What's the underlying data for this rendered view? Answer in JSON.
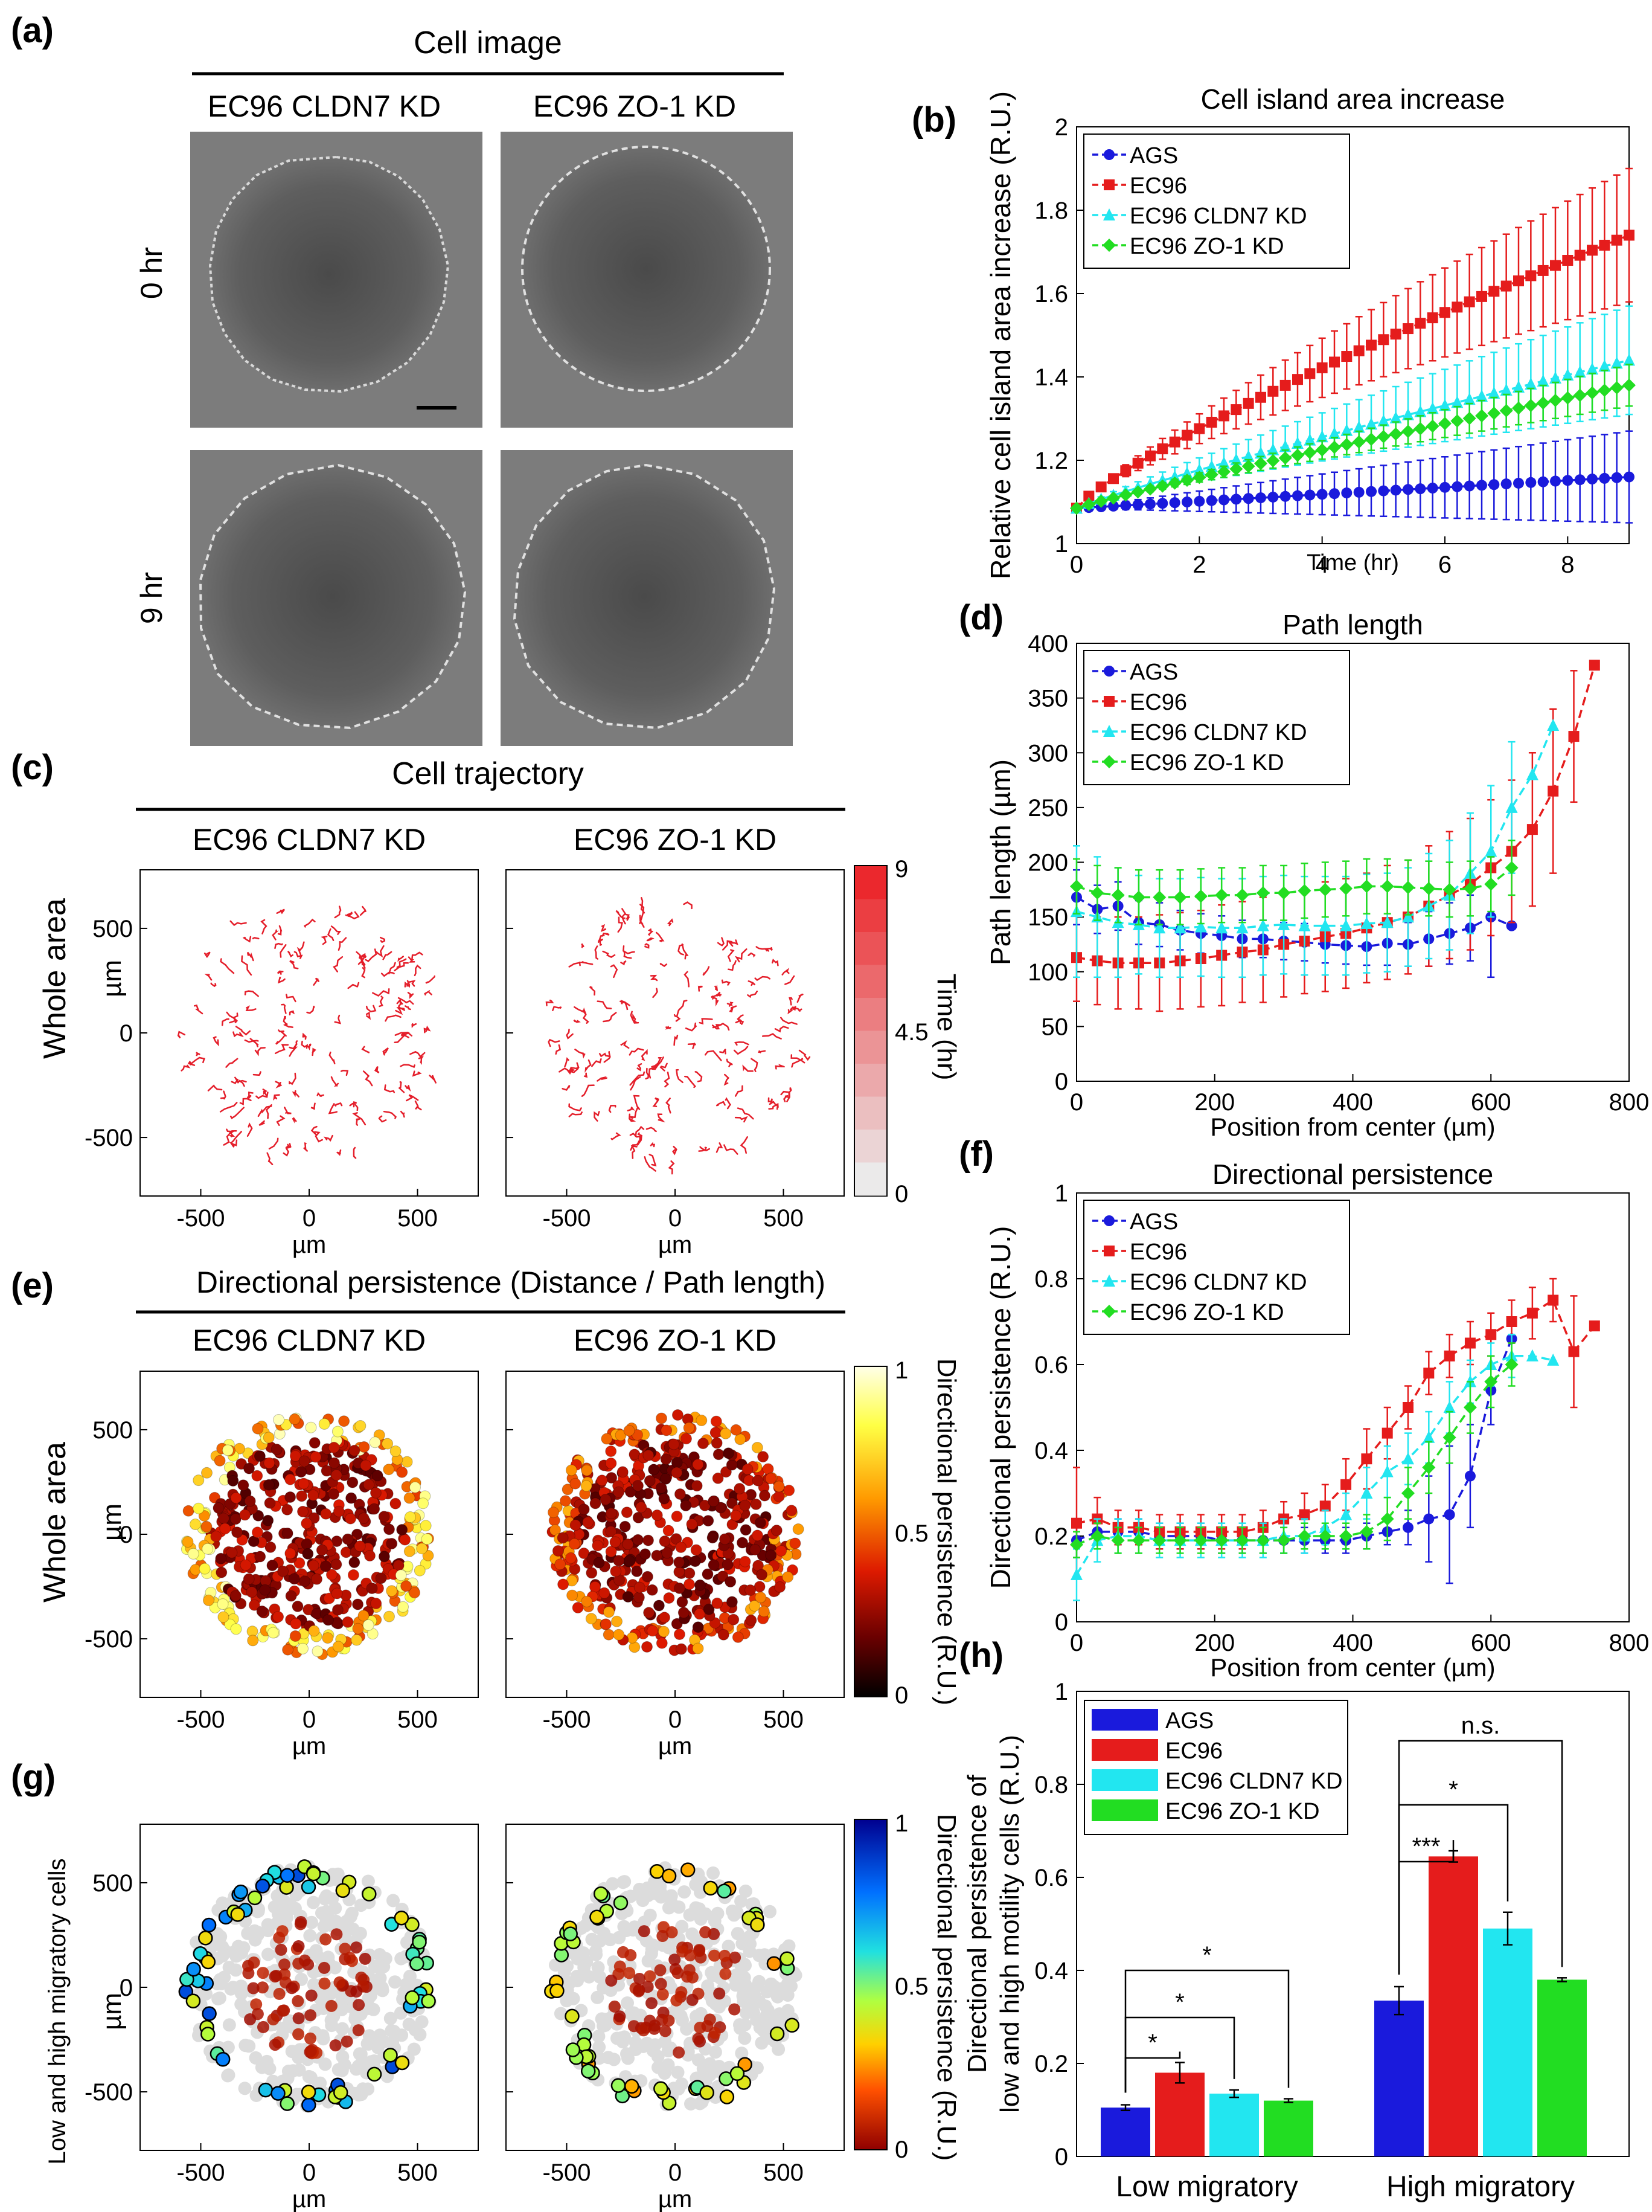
{
  "figure": {
    "panel_labels": [
      "(a)",
      "(b)",
      "(c)",
      "(d)",
      "(e)",
      "(f)",
      "(g)",
      "(h)"
    ],
    "panel_a": {
      "title": "Cell image",
      "col_labels": [
        "EC96 CLDN7 KD",
        "EC96 ZO-1 KD"
      ],
      "row_labels": [
        "0 hr",
        "9 hr"
      ]
    },
    "panel_c": {
      "title": "Cell trajectory",
      "col_labels": [
        "EC96 CLDN7 KD",
        "EC96 ZO-1 KD"
      ],
      "row_label": "Whole area",
      "axis_unit": "µm",
      "ticks": [
        "-500",
        "0",
        "500"
      ],
      "colorbar_label": "Time (hr)",
      "colorbar_ticks": [
        "9",
        "4.5",
        "0"
      ],
      "track_color": "#e41e2a"
    },
    "panel_e": {
      "title": "Directional persistence (Distance / Path length)",
      "col_labels": [
        "EC96 CLDN7 KD",
        "EC96 ZO-1 KD"
      ],
      "row_label": "Whole area",
      "axis_unit": "µm",
      "ticks": [
        "-500",
        "0",
        "500"
      ],
      "colorbar_label": "Directional persistence (R.U.)",
      "colorbar_ticks": [
        "1",
        "0.5",
        "0"
      ]
    },
    "panel_g": {
      "row_label": "Low and high migratory cells",
      "axis_unit": "µm",
      "ticks": [
        "-500",
        "0",
        "500"
      ],
      "colorbar_label": "Directional persistence (R.U.)",
      "colorbar_ticks": [
        "1",
        "0.5",
        "0"
      ]
    }
  },
  "colors": {
    "AGS": "#1a1adc",
    "EC96": "#e51c1c",
    "EC96 CLDN7 KD": "#22e6f0",
    "EC96 ZO-1 KD": "#22dd22"
  },
  "chart_data": [
    {
      "id": "b",
      "type": "line",
      "title": "Cell island area increase",
      "xlabel": "Time (hr)",
      "ylabel": "Relative cell island area increase (R.U.)",
      "xlim": [
        0,
        9
      ],
      "ylim": [
        1,
        2
      ],
      "xticks": [
        0,
        2,
        4,
        6,
        8
      ],
      "yticks": [
        1,
        1.2,
        1.4,
        1.6,
        1.8,
        2
      ],
      "ytick_labels": [
        "1",
        "1.2",
        "1.4",
        "1.6",
        "1.8",
        "2"
      ],
      "legend": [
        "AGS",
        "EC96",
        "EC96 CLDN7 KD",
        "EC96 ZO-1 KD"
      ],
      "series": [
        {
          "name": "AGS",
          "start": 1.085,
          "end": 1.16,
          "curve": 1.0,
          "err": 0.11
        },
        {
          "name": "EC96",
          "start": 1.085,
          "end": 1.74,
          "curve": 0.82,
          "err": 0.16
        },
        {
          "name": "EC96 CLDN7 KD",
          "start": 1.085,
          "end": 1.44,
          "curve": 0.9,
          "err": 0.13
        },
        {
          "name": "EC96 ZO-1 KD",
          "start": 1.085,
          "end": 1.38,
          "curve": 0.92,
          "err": 0.05
        }
      ]
    },
    {
      "id": "d",
      "type": "line",
      "title": "Path length",
      "xlabel": "Position from center (µm)",
      "ylabel": "Path length (µm)",
      "xlim": [
        0,
        800
      ],
      "ylim": [
        0,
        400
      ],
      "xticks": [
        0,
        200,
        400,
        600,
        800
      ],
      "yticks": [
        0,
        50,
        100,
        150,
        200,
        250,
        300,
        350,
        400
      ],
      "legend": [
        "AGS",
        "EC96",
        "EC96 CLDN7 KD",
        "EC96 ZO-1 KD"
      ],
      "series": [
        {
          "name": "AGS",
          "x": [
            0,
            30,
            60,
            90,
            120,
            150,
            180,
            210,
            240,
            270,
            300,
            330,
            360,
            390,
            420,
            450,
            480,
            510,
            540,
            570,
            600,
            630
          ],
          "y": [
            168,
            157,
            160,
            145,
            143,
            138,
            135,
            133,
            130,
            130,
            128,
            127,
            125,
            124,
            123,
            126,
            125,
            130,
            135,
            140,
            150,
            142
          ],
          "err": [
            25,
            22,
            22,
            20,
            20,
            18,
            18,
            18,
            17,
            17,
            17,
            17,
            17,
            17,
            17,
            20,
            20,
            25,
            28,
            30,
            55,
            0
          ]
        },
        {
          "name": "EC96",
          "x": [
            0,
            30,
            60,
            90,
            120,
            150,
            180,
            210,
            240,
            270,
            300,
            330,
            360,
            390,
            420,
            450,
            480,
            510,
            540,
            570,
            600,
            630,
            660,
            690,
            720,
            750
          ],
          "y": [
            113,
            110,
            108,
            108,
            108,
            110,
            112,
            115,
            118,
            120,
            125,
            128,
            132,
            135,
            140,
            145,
            150,
            160,
            170,
            180,
            195,
            210,
            230,
            265,
            315,
            380
          ],
          "err": [
            40,
            40,
            42,
            42,
            44,
            44,
            44,
            46,
            46,
            48,
            48,
            48,
            50,
            50,
            50,
            52,
            52,
            55,
            58,
            60,
            62,
            65,
            70,
            75,
            60,
            0
          ]
        },
        {
          "name": "EC96 CLDN7 KD",
          "x": [
            0,
            30,
            60,
            90,
            120,
            150,
            180,
            210,
            240,
            270,
            300,
            330,
            360,
            390,
            420,
            450,
            480,
            510,
            540,
            570,
            600,
            630,
            660,
            690
          ],
          "y": [
            155,
            150,
            145,
            143,
            140,
            140,
            141,
            140,
            140,
            142,
            143,
            142,
            142,
            142,
            144,
            145,
            150,
            160,
            170,
            190,
            210,
            250,
            280,
            325
          ],
          "err": [
            60,
            55,
            50,
            45,
            45,
            45,
            45,
            45,
            45,
            45,
            45,
            45,
            45,
            45,
            45,
            45,
            45,
            48,
            50,
            55,
            60,
            60,
            0,
            0
          ]
        },
        {
          "name": "EC96 ZO-1 KD",
          "x": [
            0,
            30,
            60,
            90,
            120,
            150,
            180,
            210,
            240,
            270,
            300,
            330,
            360,
            390,
            420,
            450,
            480,
            510,
            540,
            570,
            600,
            630
          ],
          "y": [
            178,
            172,
            170,
            168,
            168,
            168,
            169,
            170,
            170,
            172,
            172,
            174,
            175,
            176,
            178,
            178,
            177,
            176,
            175,
            176,
            180,
            195
          ],
          "err": [
            25,
            25,
            25,
            25,
            25,
            25,
            25,
            25,
            25,
            25,
            25,
            25,
            25,
            25,
            25,
            25,
            25,
            25,
            25,
            25,
            25,
            25
          ]
        }
      ]
    },
    {
      "id": "f",
      "type": "line",
      "title": "Directional persistence",
      "xlabel": "Position from center (µm)",
      "ylabel": "Directional persistence (R.U.)",
      "xlim": [
        0,
        800
      ],
      "ylim": [
        0,
        1
      ],
      "xticks": [
        0,
        200,
        400,
        600,
        800
      ],
      "yticks": [
        0,
        0.2,
        0.4,
        0.6,
        0.8,
        1
      ],
      "ytick_labels": [
        "0",
        "0.2",
        "0.4",
        "0.6",
        "0.8",
        "1"
      ],
      "legend": [
        "AGS",
        "EC96",
        "EC96 CLDN7 KD",
        "EC96 ZO-1 KD"
      ],
      "series": [
        {
          "name": "AGS",
          "x": [
            0,
            30,
            60,
            90,
            120,
            150,
            180,
            210,
            240,
            270,
            300,
            330,
            360,
            390,
            420,
            450,
            480,
            510,
            540,
            570,
            600,
            630
          ],
          "y": [
            0.19,
            0.21,
            0.21,
            0.21,
            0.2,
            0.2,
            0.2,
            0.19,
            0.19,
            0.19,
            0.19,
            0.19,
            0.19,
            0.19,
            0.2,
            0.21,
            0.22,
            0.24,
            0.25,
            0.34,
            0.54,
            0.66
          ],
          "err": [
            0.04,
            0.03,
            0.03,
            0.03,
            0.03,
            0.03,
            0.03,
            0.03,
            0.03,
            0.03,
            0.03,
            0.03,
            0.03,
            0.03,
            0.03,
            0.03,
            0.04,
            0.1,
            0.16,
            0.12,
            0.08,
            0.0
          ]
        },
        {
          "name": "EC96",
          "x": [
            0,
            30,
            60,
            90,
            120,
            150,
            180,
            210,
            240,
            270,
            300,
            330,
            360,
            390,
            420,
            450,
            480,
            510,
            540,
            570,
            600,
            630,
            660,
            690,
            720,
            750
          ],
          "y": [
            0.23,
            0.24,
            0.22,
            0.22,
            0.21,
            0.21,
            0.21,
            0.21,
            0.21,
            0.22,
            0.24,
            0.25,
            0.27,
            0.32,
            0.38,
            0.44,
            0.5,
            0.58,
            0.62,
            0.65,
            0.67,
            0.7,
            0.72,
            0.75,
            0.63,
            0.69
          ],
          "err": [
            0.13,
            0.05,
            0.04,
            0.04,
            0.04,
            0.04,
            0.04,
            0.04,
            0.04,
            0.04,
            0.04,
            0.05,
            0.05,
            0.06,
            0.07,
            0.06,
            0.05,
            0.05,
            0.05,
            0.05,
            0.05,
            0.05,
            0.06,
            0.05,
            0.13,
            0.0
          ]
        },
        {
          "name": "EC96 CLDN7 KD",
          "x": [
            0,
            30,
            60,
            90,
            120,
            150,
            180,
            210,
            240,
            270,
            300,
            330,
            360,
            390,
            420,
            450,
            480,
            510,
            540,
            570,
            600,
            630,
            660,
            690
          ],
          "y": [
            0.11,
            0.19,
            0.2,
            0.2,
            0.19,
            0.19,
            0.19,
            0.19,
            0.19,
            0.19,
            0.2,
            0.2,
            0.22,
            0.25,
            0.3,
            0.35,
            0.38,
            0.43,
            0.5,
            0.56,
            0.6,
            0.62,
            0.62,
            0.61
          ],
          "err": [
            0.06,
            0.05,
            0.04,
            0.04,
            0.04,
            0.04,
            0.04,
            0.04,
            0.04,
            0.04,
            0.04,
            0.04,
            0.04,
            0.05,
            0.06,
            0.06,
            0.06,
            0.06,
            0.06,
            0.05,
            0.05,
            0.05,
            0.0,
            0.0
          ]
        },
        {
          "name": "EC96 ZO-1 KD",
          "x": [
            0,
            30,
            60,
            90,
            120,
            150,
            180,
            210,
            240,
            270,
            300,
            330,
            360,
            390,
            420,
            450,
            480,
            510,
            540,
            570,
            600,
            630
          ],
          "y": [
            0.18,
            0.2,
            0.19,
            0.19,
            0.19,
            0.19,
            0.19,
            0.19,
            0.19,
            0.19,
            0.19,
            0.2,
            0.2,
            0.2,
            0.21,
            0.24,
            0.3,
            0.36,
            0.43,
            0.5,
            0.56,
            0.6
          ],
          "err": [
            0.03,
            0.03,
            0.03,
            0.03,
            0.03,
            0.03,
            0.03,
            0.03,
            0.03,
            0.03,
            0.03,
            0.03,
            0.03,
            0.03,
            0.04,
            0.05,
            0.06,
            0.06,
            0.06,
            0.06,
            0.06,
            0.05
          ]
        }
      ]
    },
    {
      "id": "h",
      "type": "bar",
      "ylabel": "Directional persistence of low and high motility cells (R.U.)",
      "ylim": [
        0,
        1
      ],
      "yticks": [
        0,
        0.2,
        0.4,
        0.6,
        0.8,
        1
      ],
      "ytick_labels": [
        "0",
        "0.2",
        "0.4",
        "0.6",
        "0.8",
        "1"
      ],
      "categories": [
        "Low migratory",
        "High migratory"
      ],
      "legend": [
        "AGS",
        "EC96",
        "EC96 CLDN7 KD",
        "EC96 ZO-1 KD"
      ],
      "series": [
        {
          "name": "AGS",
          "values": [
            0.105,
            0.335
          ],
          "err": [
            0.006,
            0.03
          ]
        },
        {
          "name": "EC96",
          "values": [
            0.18,
            0.645
          ],
          "err": [
            0.022,
            0.012
          ]
        },
        {
          "name": "EC96 CLDN7 KD",
          "values": [
            0.135,
            0.49
          ],
          "err": [
            0.008,
            0.035
          ]
        },
        {
          "name": "EC96 ZO-1 KD",
          "values": [
            0.12,
            0.38
          ],
          "err": [
            0.004,
            0.004
          ]
        }
      ],
      "significance": {
        "low": [
          "*",
          "*",
          "*"
        ],
        "high": [
          "***",
          "*",
          "n.s."
        ]
      }
    }
  ]
}
